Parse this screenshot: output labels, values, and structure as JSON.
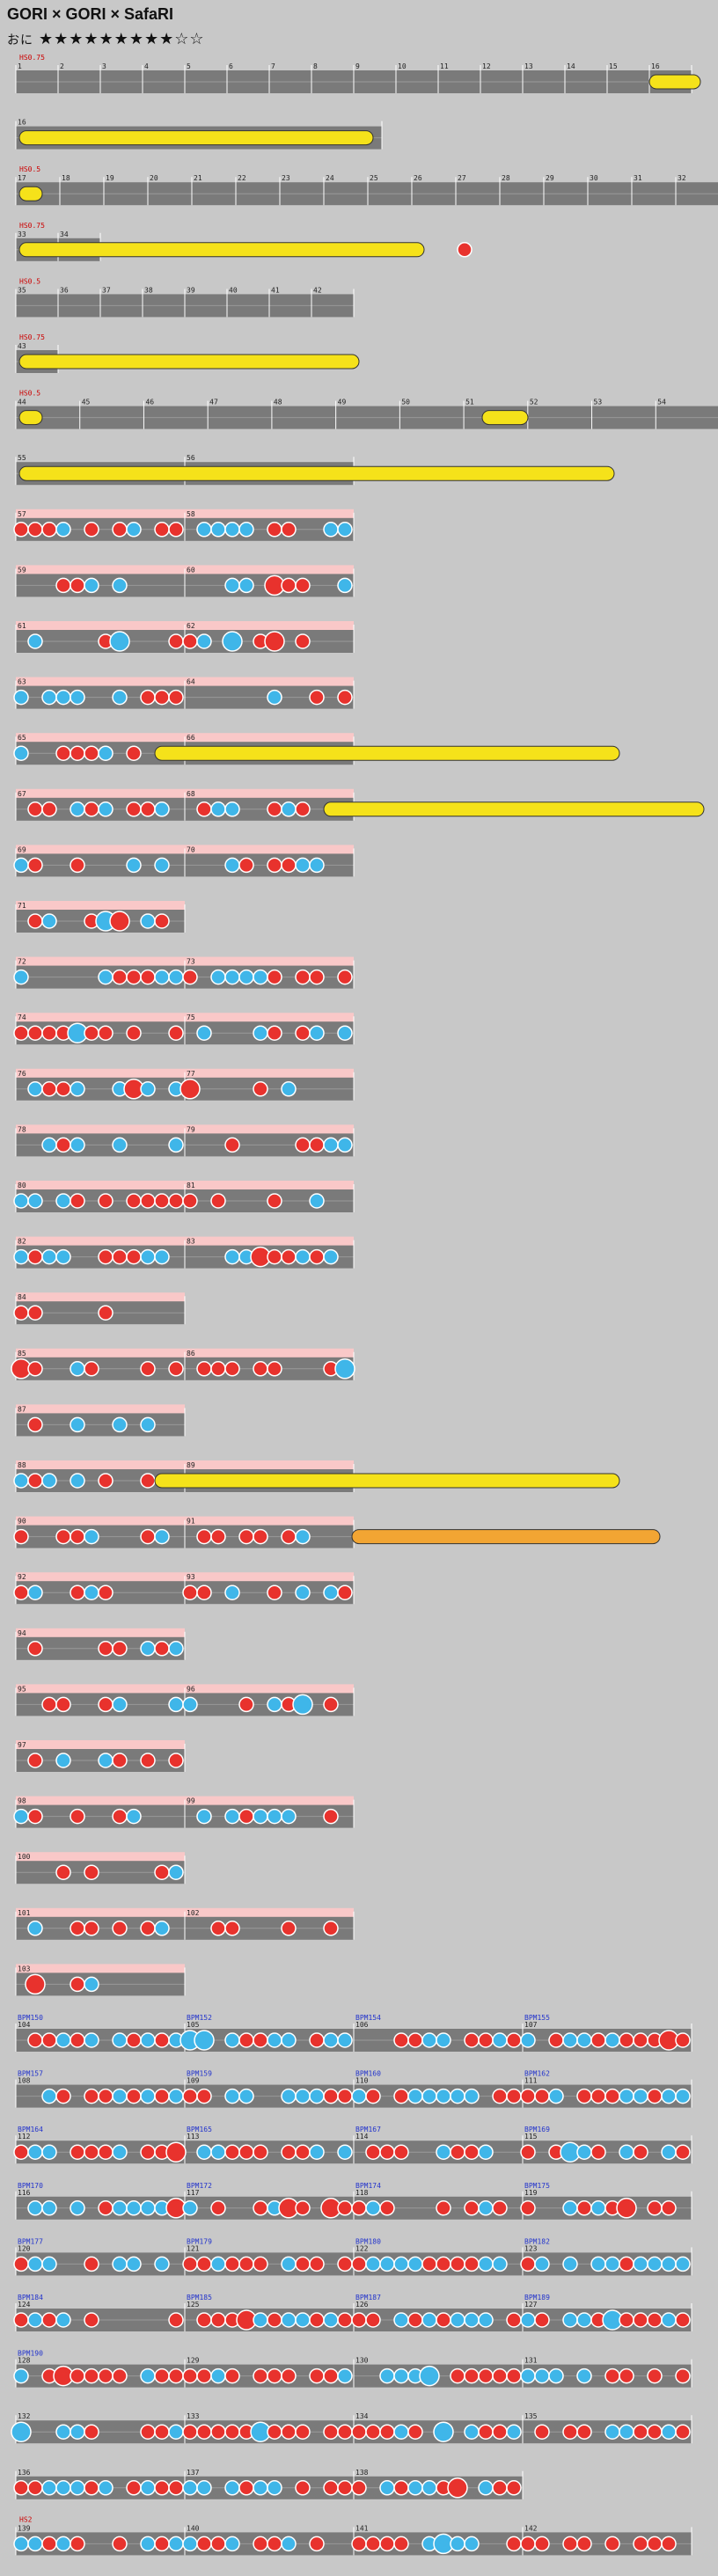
{
  "song": {
    "title": "GORI × GORI × SafaRI",
    "difficulty_label": "おに",
    "stars_filled": 9,
    "stars_total": 11
  },
  "star_glyph_filled": "★",
  "star_glyph_empty": "☆",
  "colors": {
    "don": "#e8322d",
    "ka": "#3fb6e9",
    "roll": "#f5e21a",
    "balloon": "#f2a533",
    "lane": "#7a7a7a",
    "gogo": "#f9c8c8"
  },
  "rows": [
    {
      "m": [
        "1",
        "2",
        "3",
        "4",
        "5",
        "6",
        "7",
        "8",
        "9",
        "10",
        "11",
        "12",
        "13",
        "14",
        "15",
        "16"
      ],
      "tempo": "HS0.75",
      "roll_end": true
    },
    {
      "m": [
        "16"
      ],
      "roll": true
    },
    {
      "m": [
        "17",
        "18",
        "19",
        "20",
        "21",
        "22",
        "23",
        "24",
        "25",
        "26",
        "27",
        "28",
        "29",
        "30",
        "31",
        "32"
      ],
      "tempo": "HS0.5"
    },
    {
      "m": [
        "33",
        "34"
      ],
      "tempo": "HS0.75"
    },
    {
      "m": [
        "35",
        "36",
        "37",
        "38",
        "39",
        "40",
        "41",
        "42"
      ],
      "tempo": "HS0.5"
    },
    {
      "m": [
        "43"
      ],
      "tempo": "HS0.75"
    },
    {
      "m": [
        "44",
        "45",
        "46",
        "47",
        "48",
        "49",
        "50",
        "51",
        "52",
        "53",
        "54"
      ],
      "tempo": "HS0.5"
    },
    {
      "m": [
        "55",
        "56"
      ]
    },
    {
      "m": [
        "57",
        "58"
      ]
    },
    {
      "m": [
        "59",
        "60"
      ]
    },
    {
      "m": [
        "61",
        "62"
      ]
    },
    {
      "m": [
        "63",
        "64"
      ]
    },
    {
      "m": [
        "65",
        "66"
      ]
    },
    {
      "m": [
        "67",
        "68"
      ]
    },
    {
      "m": [
        "69",
        "70"
      ]
    },
    {
      "m": [
        "71"
      ]
    },
    {
      "m": [
        "72",
        "73"
      ]
    },
    {
      "m": [
        "74",
        "75"
      ]
    },
    {
      "m": [
        "76",
        "77"
      ]
    },
    {
      "m": [
        "78",
        "79"
      ]
    },
    {
      "m": [
        "80",
        "81"
      ]
    },
    {
      "m": [
        "82",
        "83"
      ]
    },
    {
      "m": [
        "84"
      ]
    },
    {
      "m": [
        "85",
        "86"
      ]
    },
    {
      "m": [
        "87"
      ]
    },
    {
      "m": [
        "88",
        "89"
      ]
    },
    {
      "m": [
        "90",
        "91"
      ]
    },
    {
      "m": [
        "92",
        "93"
      ]
    },
    {
      "m": [
        "94"
      ]
    },
    {
      "m": [
        "95",
        "96"
      ]
    },
    {
      "m": [
        "97"
      ]
    },
    {
      "m": [
        "98",
        "99"
      ]
    },
    {
      "m": [
        "100"
      ]
    },
    {
      "m": [
        "101",
        "102"
      ]
    },
    {
      "m": [
        "103"
      ]
    },
    {
      "m": [
        "104",
        "105",
        "106",
        "107"
      ],
      "bpm": [
        "BPM150",
        "BPM152",
        "BPM154",
        "BPM155"
      ]
    },
    {
      "m": [
        "108",
        "109",
        "110",
        "111"
      ],
      "bpm": [
        "BPM157",
        "BPM159",
        "BPM160",
        "BPM162"
      ]
    },
    {
      "m": [
        "112",
        "113",
        "114",
        "115"
      ],
      "bpm": [
        "BPM164",
        "BPM165",
        "BPM167",
        "BPM169"
      ]
    },
    {
      "m": [
        "116",
        "117",
        "118",
        "119"
      ],
      "bpm": [
        "BPM170",
        "BPM172",
        "BPM174",
        "BPM175"
      ]
    },
    {
      "m": [
        "120",
        "121",
        "122",
        "123"
      ],
      "bpm": [
        "BPM177",
        "BPM179",
        "BPM180",
        "BPM182"
      ]
    },
    {
      "m": [
        "124",
        "125",
        "126",
        "127"
      ],
      "bpm": [
        "BPM184",
        "BPM185",
        "BPM187",
        "BPM189"
      ]
    },
    {
      "m": [
        "128",
        "129",
        "130",
        "131"
      ],
      "bpm": [
        "BPM190"
      ]
    },
    {
      "m": [
        "132",
        "133",
        "134",
        "135"
      ]
    },
    {
      "m": [
        "136",
        "137",
        "138"
      ]
    },
    {
      "m": [
        "139",
        "140",
        "141",
        "142"
      ],
      "tempo": "HS2"
    }
  ]
}
